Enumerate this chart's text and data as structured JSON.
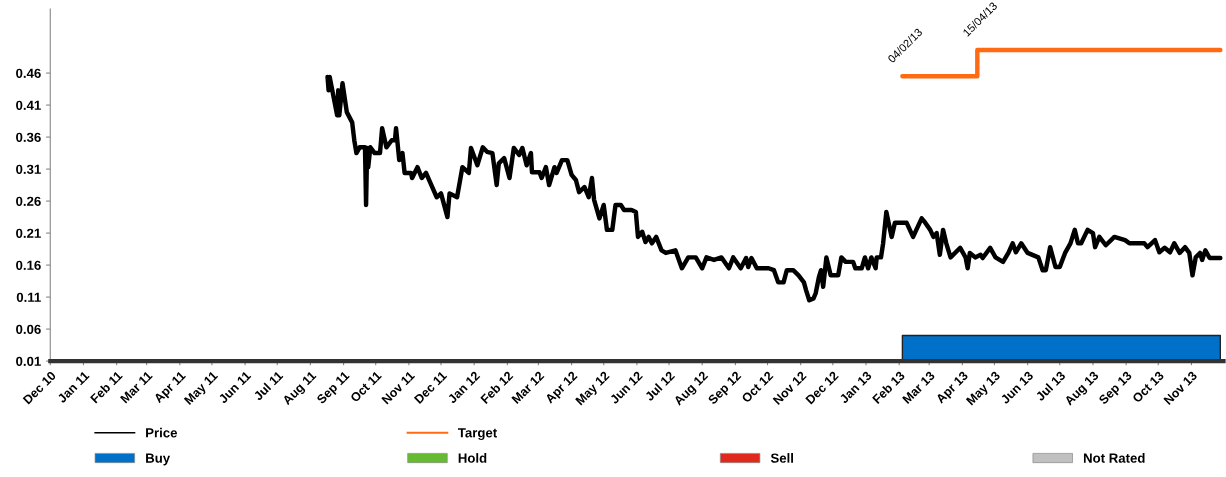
{
  "chart_data": {
    "type": "line",
    "xlim": [
      "2010-12-01",
      "2013-12-01"
    ],
    "xticks": [
      {
        "value": "2010-12-01",
        "label": "Dec 10"
      },
      {
        "value": "2011-01-01",
        "label": "Jan 11"
      },
      {
        "value": "2011-02-01",
        "label": "Feb 11"
      },
      {
        "value": "2011-03-01",
        "label": "Mar 11"
      },
      {
        "value": "2011-04-01",
        "label": "Apr 11"
      },
      {
        "value": "2011-05-01",
        "label": "May 11"
      },
      {
        "value": "2011-06-01",
        "label": "Jun 11"
      },
      {
        "value": "2011-07-01",
        "label": "Jul 11"
      },
      {
        "value": "2011-08-01",
        "label": "Aug 11"
      },
      {
        "value": "2011-09-01",
        "label": "Sep 11"
      },
      {
        "value": "2011-10-01",
        "label": "Oct 11"
      },
      {
        "value": "2011-11-01",
        "label": "Nov 11"
      },
      {
        "value": "2011-12-01",
        "label": "Dec 11"
      },
      {
        "value": "2012-01-01",
        "label": "Jan 12"
      },
      {
        "value": "2012-02-01",
        "label": "Feb 12"
      },
      {
        "value": "2012-03-01",
        "label": "Mar 12"
      },
      {
        "value": "2012-04-01",
        "label": "Apr 12"
      },
      {
        "value": "2012-05-01",
        "label": "May 12"
      },
      {
        "value": "2012-06-01",
        "label": "Jun 12"
      },
      {
        "value": "2012-07-01",
        "label": "Jul 12"
      },
      {
        "value": "2012-08-01",
        "label": "Aug 12"
      },
      {
        "value": "2012-09-01",
        "label": "Sep 12"
      },
      {
        "value": "2012-10-01",
        "label": "Oct 12"
      },
      {
        "value": "2012-11-01",
        "label": "Nov 12"
      },
      {
        "value": "2012-12-01",
        "label": "Dec 12"
      },
      {
        "value": "2013-01-01",
        "label": "Jan 13"
      },
      {
        "value": "2013-02-01",
        "label": "Feb 13"
      },
      {
        "value": "2013-03-01",
        "label": "Mar 13"
      },
      {
        "value": "2013-04-01",
        "label": "Apr 13"
      },
      {
        "value": "2013-05-01",
        "label": "May 13"
      },
      {
        "value": "2013-06-01",
        "label": "Jun 13"
      },
      {
        "value": "2013-07-01",
        "label": "Jul 13"
      },
      {
        "value": "2013-08-01",
        "label": "Aug 13"
      },
      {
        "value": "2013-09-01",
        "label": "Sep 13"
      },
      {
        "value": "2013-10-01",
        "label": "Oct 13"
      },
      {
        "value": "2013-11-01",
        "label": "Nov 13"
      }
    ],
    "ylim": [
      0.01,
      0.56
    ],
    "yticks": [
      {
        "value": 0.01,
        "label": "0.01"
      },
      {
        "value": 0.06,
        "label": "0.06"
      },
      {
        "value": 0.11,
        "label": "0.11"
      },
      {
        "value": 0.16,
        "label": "0.16"
      },
      {
        "value": 0.21,
        "label": "0.21"
      },
      {
        "value": 0.26,
        "label": "0.26"
      },
      {
        "value": 0.31,
        "label": "0.31"
      },
      {
        "value": 0.36,
        "label": "0.36"
      },
      {
        "value": 0.41,
        "label": "0.41"
      },
      {
        "value": 0.46,
        "label": "0.46"
      }
    ],
    "grid": false,
    "legend": "bottom",
    "annotations": [
      {
        "text": "04/02/13",
        "x": "2013-02-04",
        "y": 0.455
      },
      {
        "text": "15/04/13",
        "x": "2013-04-15",
        "y": 0.496
      }
    ],
    "series": [
      {
        "name": "Price",
        "color": "#000000",
        "x": [
          "2011-08-17",
          "2011-08-18",
          "2011-08-19",
          "2011-08-26",
          "2011-08-27",
          "2011-08-28",
          "2011-08-31",
          "2011-09-04",
          "2011-09-09",
          "2011-09-11",
          "2011-09-13",
          "2011-09-16",
          "2011-09-21",
          "2011-09-22",
          "2011-09-23",
          "2011-09-24",
          "2011-09-26",
          "2011-09-30",
          "2011-10-05",
          "2011-10-07",
          "2011-10-11",
          "2011-10-16",
          "2011-10-19",
          "2011-10-20",
          "2011-10-23",
          "2011-10-26",
          "2011-10-28",
          "2011-11-03",
          "2011-11-04",
          "2011-11-09",
          "2011-11-13",
          "2011-11-17",
          "2011-11-22",
          "2011-11-27",
          "2011-12-01",
          "2011-12-07",
          "2011-12-09",
          "2011-12-16",
          "2011-12-21",
          "2011-12-27",
          "2011-12-29",
          "2012-01-04",
          "2012-01-09",
          "2012-01-13",
          "2012-01-18",
          "2012-01-22",
          "2012-01-24",
          "2012-01-29",
          "2012-02-03",
          "2012-02-07",
          "2012-02-12",
          "2012-02-15",
          "2012-02-19",
          "2012-02-23",
          "2012-02-24",
          "2012-03-02",
          "2012-03-04",
          "2012-03-08",
          "2012-03-11",
          "2012-03-16",
          "2012-03-18",
          "2012-03-23",
          "2012-03-28",
          "2012-04-01",
          "2012-04-05",
          "2012-04-08",
          "2012-04-13",
          "2012-04-17",
          "2012-04-20",
          "2012-04-22",
          "2012-04-27",
          "2012-05-01",
          "2012-05-04",
          "2012-05-09",
          "2012-05-12",
          "2012-05-17",
          "2012-05-20",
          "2012-05-27",
          "2012-05-31",
          "2012-06-02",
          "2012-06-06",
          "2012-06-09",
          "2012-06-12",
          "2012-06-15",
          "2012-06-19",
          "2012-06-24",
          "2012-06-28",
          "2012-07-07",
          "2012-07-13",
          "2012-07-19",
          "2012-07-26",
          "2012-08-01",
          "2012-08-05",
          "2012-08-12",
          "2012-08-19",
          "2012-08-26",
          "2012-08-30",
          "2012-09-06",
          "2012-09-11",
          "2012-09-13",
          "2012-09-16",
          "2012-09-21",
          "2012-10-02",
          "2012-10-07",
          "2012-10-11",
          "2012-10-16",
          "2012-10-19",
          "2012-10-25",
          "2012-10-30",
          "2012-11-04",
          "2012-11-06",
          "2012-11-09",
          "2012-11-13",
          "2012-11-15",
          "2012-11-18",
          "2012-11-20",
          "2012-11-22",
          "2012-11-25",
          "2012-11-29",
          "2012-12-06",
          "2012-12-09",
          "2012-12-13",
          "2012-12-20",
          "2012-12-22",
          "2012-12-28",
          "2012-12-31",
          "2013-01-03",
          "2013-01-06",
          "2013-01-10",
          "2013-01-11",
          "2013-01-15",
          "2013-01-17",
          "2013-01-20",
          "2013-01-22",
          "2013-01-25",
          "2013-01-28",
          "2013-02-08",
          "2013-02-11",
          "2013-02-14",
          "2013-02-17",
          "2013-02-22",
          "2013-02-25",
          "2013-03-02",
          "2013-03-05",
          "2013-03-08",
          "2013-03-11",
          "2013-03-14",
          "2013-03-17",
          "2013-03-21",
          "2013-03-30",
          "2013-04-04",
          "2013-04-06",
          "2013-04-08",
          "2013-04-13",
          "2013-04-18",
          "2013-04-20",
          "2013-04-27",
          "2013-05-02",
          "2013-05-09",
          "2013-05-14",
          "2013-05-18",
          "2013-05-21",
          "2013-05-26",
          "2013-06-01",
          "2013-06-11",
          "2013-06-15",
          "2013-06-18",
          "2013-06-22",
          "2013-06-27",
          "2013-07-01",
          "2013-07-06",
          "2013-07-11",
          "2013-07-15",
          "2013-07-18",
          "2013-07-21",
          "2013-07-27",
          "2013-08-01",
          "2013-08-03",
          "2013-08-07",
          "2013-08-13",
          "2013-08-21",
          "2013-08-31",
          "2013-09-04",
          "2013-09-18",
          "2013-09-21",
          "2013-09-28",
          "2013-10-02",
          "2013-10-07",
          "2013-10-12",
          "2013-10-16",
          "2013-10-21",
          "2013-10-26",
          "2013-10-30",
          "2013-11-02",
          "2013-11-05",
          "2013-11-09",
          "2013-11-11",
          "2013-11-14",
          "2013-11-18",
          "2013-11-28"
        ],
        "values": [
          0.454,
          0.433,
          0.454,
          0.394,
          0.433,
          0.394,
          0.444,
          0.399,
          0.383,
          0.355,
          0.335,
          0.344,
          0.344,
          0.254,
          0.343,
          0.313,
          0.344,
          0.335,
          0.335,
          0.374,
          0.344,
          0.355,
          0.355,
          0.374,
          0.324,
          0.335,
          0.304,
          0.304,
          0.296,
          0.313,
          0.296,
          0.304,
          0.285,
          0.266,
          0.272,
          0.235,
          0.272,
          0.266,
          0.313,
          0.304,
          0.343,
          0.316,
          0.344,
          0.337,
          0.335,
          0.285,
          0.319,
          0.327,
          0.296,
          0.343,
          0.332,
          0.343,
          0.316,
          0.335,
          0.305,
          0.305,
          0.296,
          0.313,
          0.285,
          0.313,
          0.304,
          0.324,
          0.324,
          0.301,
          0.293,
          0.274,
          0.282,
          0.266,
          0.296,
          0.262,
          0.233,
          0.254,
          0.215,
          0.215,
          0.254,
          0.254,
          0.246,
          0.246,
          0.243,
          0.204,
          0.212,
          0.196,
          0.204,
          0.194,
          0.204,
          0.183,
          0.179,
          0.183,
          0.155,
          0.172,
          0.172,
          0.155,
          0.172,
          0.168,
          0.172,
          0.155,
          0.172,
          0.155,
          0.171,
          0.157,
          0.171,
          0.155,
          0.155,
          0.152,
          0.133,
          0.133,
          0.152,
          0.152,
          0.144,
          0.133,
          0.121,
          0.105,
          0.108,
          0.116,
          0.141,
          0.152,
          0.126,
          0.172,
          0.144,
          0.144,
          0.172,
          0.165,
          0.165,
          0.155,
          0.155,
          0.172,
          0.155,
          0.172,
          0.155,
          0.172,
          0.172,
          0.194,
          0.243,
          0.227,
          0.204,
          0.226,
          0.226,
          0.215,
          0.204,
          0.215,
          0.233,
          0.227,
          0.215,
          0.204,
          0.21,
          0.176,
          0.215,
          0.194,
          0.172,
          0.187,
          0.172,
          0.155,
          0.179,
          0.172,
          0.176,
          0.171,
          0.187,
          0.172,
          0.165,
          0.179,
          0.194,
          0.18,
          0.194,
          0.179,
          0.172,
          0.152,
          0.152,
          0.188,
          0.157,
          0.157,
          0.179,
          0.194,
          0.215,
          0.194,
          0.194,
          0.215,
          0.21,
          0.188,
          0.204,
          0.191,
          0.204,
          0.199,
          0.194,
          0.194,
          0.188,
          0.199,
          0.18,
          0.187,
          0.18,
          0.194,
          0.179,
          0.188,
          0.179,
          0.144,
          0.172,
          0.179,
          0.168,
          0.183,
          0.171,
          0.171
        ]
      },
      {
        "name": "Buy",
        "type": "area",
        "color": "#0070c8",
        "x": [
          "2013-02-04",
          "2013-11-28"
        ],
        "values": [
          0.05,
          0.05
        ]
      },
      {
        "name": "Target",
        "type": "step",
        "color": "#ff6a13",
        "x": [
          "2013-02-04",
          "2013-04-15",
          "2013-11-28"
        ],
        "values": [
          0.455,
          0.496,
          0.496
        ]
      },
      {
        "name": "Hold",
        "type": "area",
        "color": "#66bb33"
      },
      {
        "name": "Sell",
        "type": "area",
        "color": "#e0281c"
      },
      {
        "name": "Not Rated",
        "type": "area",
        "color": "#c0c0c0"
      }
    ]
  }
}
